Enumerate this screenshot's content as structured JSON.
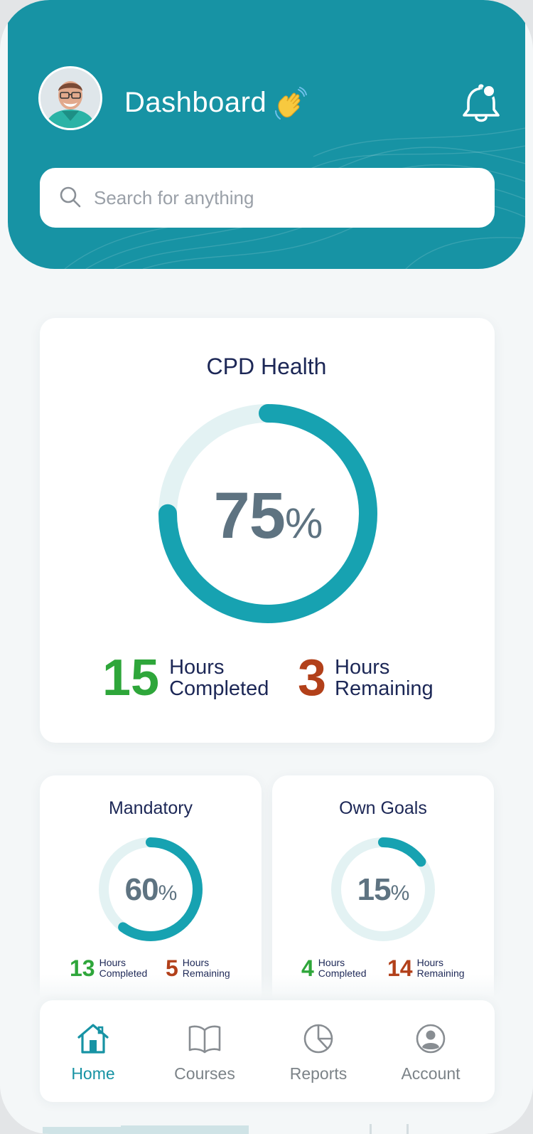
{
  "header": {
    "title": "Dashboard",
    "wave_emoji": "👋",
    "avatar": "user-avatar",
    "notification_icon": "bell-icon"
  },
  "search": {
    "placeholder": "Search for anything",
    "icon": "search-icon"
  },
  "cpd_health": {
    "title": "CPD Health",
    "percent": "75",
    "percent_value": 75,
    "percent_sign": "%",
    "completed_hours": "15",
    "completed_label_1": "Hours",
    "completed_label_2": "Completed",
    "remaining_hours": "3",
    "remaining_label_1": "Hours",
    "remaining_label_2": "Remaining"
  },
  "mandatory": {
    "title": "Mandatory",
    "percent": "60",
    "percent_value": 60,
    "percent_sign": "%",
    "completed_hours": "13",
    "completed_label_1": "Hours",
    "completed_label_2": "Completed",
    "remaining_hours": "5",
    "remaining_label_1": "Hours",
    "remaining_label_2": "Remaining"
  },
  "own_goals": {
    "title": "Own Goals",
    "percent": "15",
    "percent_value": 15,
    "percent_sign": "%",
    "completed_hours": "4",
    "completed_label_1": "Hours",
    "completed_label_2": "Completed",
    "remaining_hours": "14",
    "remaining_label_1": "Hours",
    "remaining_label_2": "Remaining"
  },
  "nav": {
    "items": [
      {
        "label": "Home",
        "icon": "home-icon",
        "active": true
      },
      {
        "label": "Courses",
        "icon": "book-icon",
        "active": false
      },
      {
        "label": "Reports",
        "icon": "pie-chart-icon",
        "active": false
      },
      {
        "label": "Account",
        "icon": "user-circle-icon",
        "active": false
      }
    ]
  },
  "colors": {
    "primary": "#1793a4",
    "ring": "#17a2b1",
    "ring_track": "#e3f2f3",
    "completed": "#2ea63a",
    "remaining": "#b2401a",
    "heading": "#1c2756",
    "percent_text": "#5e7381"
  }
}
